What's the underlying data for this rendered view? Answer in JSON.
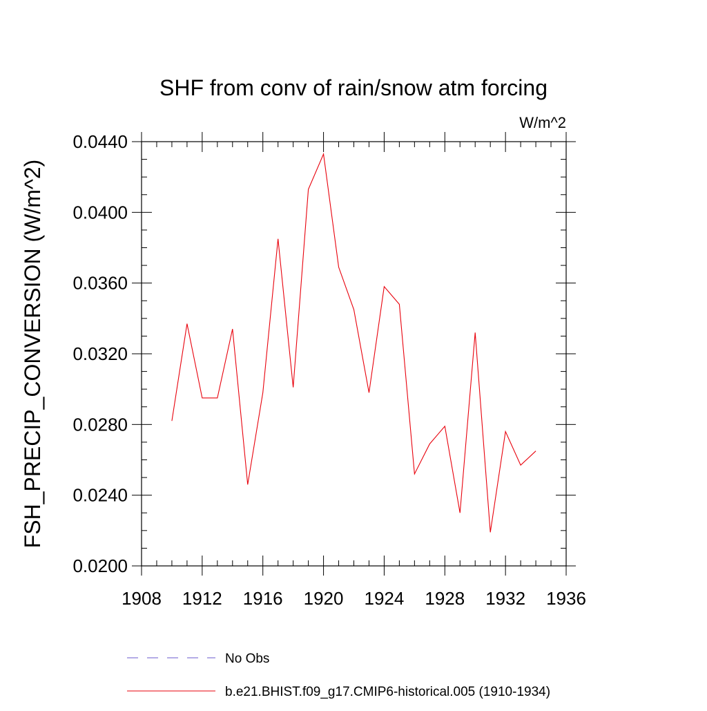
{
  "chart_data": {
    "type": "line",
    "title": "SHF from conv of rain/snow atm forcing",
    "units_label": "W/m^2",
    "ylabel": "FSH_PRECIP_CONVERSION  (W/m^2)",
    "xlabel": "",
    "xlim": [
      1908,
      1936
    ],
    "ylim": [
      0.02,
      0.044
    ],
    "xticks": [
      1908,
      1912,
      1916,
      1920,
      1924,
      1928,
      1932,
      1936
    ],
    "xtick_labels": [
      "1908",
      "1912",
      "1916",
      "1920",
      "1924",
      "1928",
      "1932",
      "1936"
    ],
    "yticks": [
      0.02,
      0.024,
      0.028,
      0.032,
      0.036,
      0.04,
      0.044
    ],
    "ytick_labels": [
      "0.0200",
      "0.0240",
      "0.0280",
      "0.0320",
      "0.0360",
      "0.0400",
      "0.0440"
    ],
    "grid": false,
    "legend_position": "bottom",
    "series": [
      {
        "name": "b.e21.BHIST.f09_g17.CMIP6-historical.005 (1910-1934)",
        "color": "#e8000b",
        "style": "solid",
        "x": [
          1910,
          1911,
          1912,
          1913,
          1914,
          1915,
          1916,
          1917,
          1918,
          1919,
          1920,
          1921,
          1922,
          1923,
          1924,
          1925,
          1926,
          1927,
          1928,
          1929,
          1930,
          1931,
          1932,
          1933,
          1934
        ],
        "y": [
          0.0282,
          0.0337,
          0.0295,
          0.0295,
          0.0334,
          0.0246,
          0.0298,
          0.0385,
          0.0301,
          0.0413,
          0.0433,
          0.0369,
          0.0345,
          0.0298,
          0.0358,
          0.0348,
          0.0252,
          0.0269,
          0.0279,
          0.023,
          0.0332,
          0.0219,
          0.0276,
          0.0257,
          0.0265
        ]
      }
    ],
    "legend": [
      {
        "name": "No Obs",
        "color": "#6a5acd",
        "style": "dashed"
      },
      {
        "name": "b.e21.BHIST.f09_g17.CMIP6-historical.005 (1910-1934)",
        "color": "#e8000b",
        "style": "solid"
      }
    ]
  }
}
